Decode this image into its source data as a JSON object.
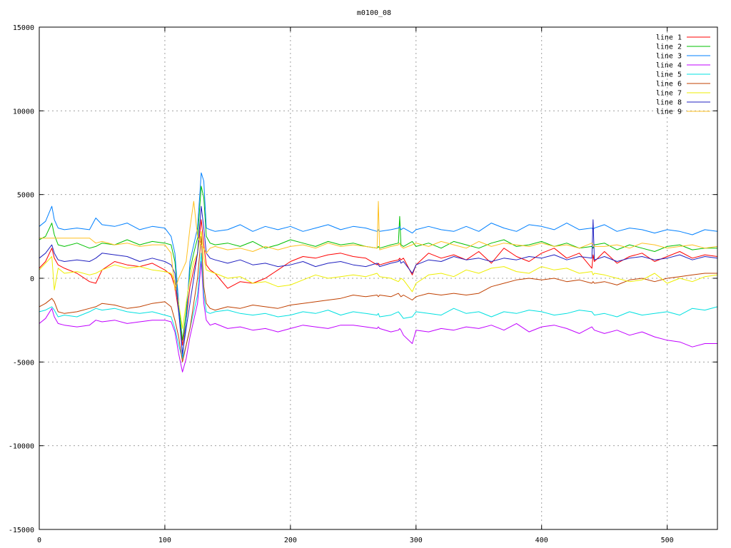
{
  "chart_data": {
    "type": "line",
    "title": "m0100_08",
    "xlabel": "",
    "ylabel": "",
    "xlim": [
      0,
      540
    ],
    "ylim": [
      -15000,
      15000
    ],
    "xticks": [
      "0",
      "100",
      "200",
      "300",
      "400",
      "500"
    ],
    "yticks": [
      "15000",
      "10000",
      "5000",
      "0",
      "-5000",
      "-10000",
      "-15000"
    ],
    "grid": true,
    "legend_position": "top-right",
    "x": [
      0,
      5,
      10,
      12,
      15,
      20,
      30,
      40,
      45,
      50,
      60,
      70,
      80,
      90,
      100,
      105,
      108,
      111,
      114,
      117,
      120,
      123,
      126,
      129,
      131,
      133,
      136,
      140,
      150,
      160,
      170,
      180,
      190,
      200,
      210,
      220,
      230,
      240,
      250,
      260,
      269,
      270,
      271,
      280,
      286,
      287,
      288,
      290,
      297,
      300,
      310,
      320,
      330,
      340,
      350,
      360,
      370,
      380,
      390,
      400,
      410,
      420,
      430,
      440,
      441,
      442,
      450,
      460,
      470,
      480,
      490,
      500,
      510,
      520,
      530,
      540
    ],
    "series": [
      {
        "name": "line 1",
        "color": "#ff0000",
        "values": [
          600,
          1000,
          1800,
          1200,
          800,
          600,
          300,
          -200,
          -300,
          500,
          1000,
          800,
          700,
          900,
          500,
          200,
          -500,
          -2000,
          -4000,
          -2500,
          -500,
          500,
          1500,
          3500,
          2000,
          800,
          500,
          300,
          -600,
          -200,
          -300,
          0,
          500,
          1000,
          1300,
          1200,
          1400,
          1500,
          1300,
          1200,
          800,
          900,
          800,
          1000,
          1100,
          1200,
          1100,
          1200,
          200,
          800,
          1500,
          1200,
          1400,
          1100,
          1600,
          900,
          1800,
          1300,
          1000,
          1500,
          1800,
          1200,
          1500,
          600,
          1400,
          1000,
          1600,
          900,
          1300,
          1500,
          1000,
          1300,
          1600,
          1200,
          1400,
          1300
        ]
      },
      {
        "name": "line 2",
        "color": "#00c000",
        "values": [
          2300,
          2500,
          3300,
          2600,
          2000,
          1900,
          2100,
          1800,
          1900,
          2100,
          2000,
          2300,
          2000,
          2200,
          2100,
          2000,
          1000,
          -1500,
          -3700,
          -2000,
          500,
          1500,
          2400,
          5500,
          4800,
          2500,
          2100,
          2000,
          2100,
          1900,
          2200,
          1800,
          2000,
          2300,
          2100,
          1900,
          2200,
          2000,
          2100,
          1900,
          1800,
          1900,
          1800,
          2000,
          2100,
          3700,
          2000,
          1900,
          2200,
          1900,
          2100,
          1800,
          2200,
          2000,
          1800,
          2100,
          2300,
          1900,
          2000,
          2200,
          1900,
          2100,
          1800,
          1900,
          1800,
          2000,
          2100,
          1700,
          2000,
          1800,
          1600,
          1900,
          2000,
          1700,
          1800,
          1800
        ]
      },
      {
        "name": "line 3",
        "color": "#0080ff",
        "values": [
          3100,
          3400,
          4300,
          3500,
          3000,
          2900,
          3000,
          2900,
          3600,
          3200,
          3100,
          3300,
          2900,
          3100,
          3000,
          2500,
          1500,
          -1500,
          -4700,
          -2500,
          1000,
          2000,
          3000,
          6300,
          5800,
          3000,
          2900,
          2800,
          2900,
          3200,
          2800,
          3100,
          2900,
          3100,
          2800,
          3000,
          3200,
          2900,
          3100,
          3000,
          2800,
          2900,
          2800,
          2900,
          3000,
          3100,
          2900,
          3000,
          2700,
          2900,
          3100,
          2900,
          2800,
          3100,
          2800,
          3300,
          3000,
          2800,
          3200,
          3100,
          2900,
          3300,
          2900,
          3000,
          2900,
          3000,
          3200,
          2800,
          3000,
          2900,
          2700,
          2900,
          2800,
          2600,
          2900,
          2800
        ]
      },
      {
        "name": "line 4",
        "color": "#c000ff",
        "values": [
          -2700,
          -2400,
          -1800,
          -2300,
          -2700,
          -2800,
          -2900,
          -2800,
          -2500,
          -2600,
          -2500,
          -2700,
          -2600,
          -2500,
          -2500,
          -2600,
          -3200,
          -4500,
          -5600,
          -4800,
          -3500,
          -2500,
          -1500,
          1000,
          -1500,
          -2500,
          -2800,
          -2700,
          -3000,
          -2900,
          -3100,
          -3000,
          -3200,
          -3000,
          -2800,
          -2900,
          -3000,
          -2800,
          -2800,
          -2900,
          -3000,
          -2900,
          -3000,
          -3200,
          -3100,
          -3000,
          -3100,
          -3400,
          -3900,
          -3100,
          -3200,
          -3000,
          -3100,
          -2900,
          -3000,
          -2800,
          -3100,
          -2700,
          -3200,
          -2900,
          -2800,
          -3000,
          -3300,
          -2900,
          -3000,
          -3100,
          -3300,
          -3100,
          -3400,
          -3200,
          -3500,
          -3700,
          -3800,
          -4100,
          -3900,
          -3900
        ]
      },
      {
        "name": "line 5",
        "color": "#00e0e0",
        "values": [
          -2000,
          -1900,
          -1700,
          -1900,
          -2300,
          -2200,
          -2300,
          -2000,
          -1800,
          -1900,
          -1800,
          -2000,
          -2100,
          -2000,
          -2200,
          -2300,
          -3000,
          -4000,
          -4800,
          -4000,
          -3000,
          -2000,
          -1000,
          1500,
          -1000,
          -2000,
          -2100,
          -2000,
          -1900,
          -2100,
          -2200,
          -2100,
          -2300,
          -2200,
          -2000,
          -2100,
          -1900,
          -2200,
          -2000,
          -2100,
          -2200,
          -2100,
          -2300,
          -2200,
          -2000,
          -2100,
          -2200,
          -2400,
          -2300,
          -2000,
          -2100,
          -2200,
          -1800,
          -2100,
          -2000,
          -2300,
          -2000,
          -2100,
          -1900,
          -2000,
          -2200,
          -2100,
          -1900,
          -2000,
          -2100,
          -2200,
          -2100,
          -2300,
          -2000,
          -2200,
          -2100,
          -2000,
          -2200,
          -1800,
          -1900,
          -1700
        ]
      },
      {
        "name": "line 6",
        "color": "#c04000",
        "values": [
          -1700,
          -1500,
          -1200,
          -1400,
          -2000,
          -2100,
          -2000,
          -1800,
          -1700,
          -1500,
          -1600,
          -1800,
          -1700,
          -1500,
          -1400,
          -1700,
          -2500,
          -3500,
          -5000,
          -4000,
          -3000,
          -1500,
          0,
          2500,
          -500,
          -1500,
          -1800,
          -1900,
          -1700,
          -1800,
          -1600,
          -1700,
          -1800,
          -1600,
          -1500,
          -1400,
          -1300,
          -1200,
          -1000,
          -1100,
          -1000,
          -1100,
          -1000,
          -1100,
          -900,
          -1000,
          -1100,
          -1000,
          -1300,
          -1100,
          -900,
          -1000,
          -900,
          -1000,
          -900,
          -500,
          -300,
          -100,
          0,
          -100,
          0,
          -200,
          -100,
          -300,
          -200,
          -300,
          -200,
          -400,
          -100,
          0,
          -200,
          0,
          100,
          200,
          300,
          300
        ]
      },
      {
        "name": "line 7",
        "color": "#eeee00",
        "values": [
          500,
          900,
          1300,
          -700,
          600,
          300,
          400,
          200,
          300,
          500,
          800,
          600,
          700,
          500,
          400,
          300,
          -200,
          -1500,
          -3000,
          -1500,
          0,
          1000,
          1500,
          2800,
          1200,
          500,
          400,
          300,
          0,
          100,
          -300,
          -200,
          -500,
          -400,
          -100,
          200,
          0,
          100,
          200,
          100,
          300,
          200,
          100,
          0,
          -200,
          -100,
          0,
          -100,
          -800,
          -300,
          200,
          300,
          100,
          500,
          300,
          600,
          700,
          400,
          300,
          700,
          500,
          600,
          300,
          400,
          200,
          300,
          200,
          0,
          -200,
          -100,
          300,
          -300,
          0,
          -200,
          100,
          200
        ]
      },
      {
        "name": "line 8",
        "color": "#2020c0",
        "values": [
          1200,
          1500,
          2000,
          1500,
          1100,
          1000,
          1100,
          1000,
          1200,
          1500,
          1400,
          1300,
          1000,
          1200,
          1000,
          800,
          300,
          -2000,
          -4500,
          -3000,
          -1500,
          0,
          1500,
          4300,
          3000,
          1500,
          1200,
          1100,
          900,
          1100,
          800,
          900,
          700,
          800,
          1000,
          700,
          900,
          1000,
          800,
          700,
          900,
          800,
          700,
          900,
          1000,
          1100,
          900,
          1000,
          300,
          800,
          1100,
          1000,
          1300,
          1100,
          1200,
          1000,
          1200,
          1100,
          1300,
          1200,
          1400,
          1100,
          1300,
          1200,
          3500,
          1100,
          1300,
          1000,
          1200,
          1300,
          1100,
          1200,
          1400,
          1100,
          1300,
          1200
        ]
      },
      {
        "name": "line 9",
        "color": "#ffc020",
        "values": [
          2400,
          2400,
          2400,
          2400,
          2400,
          2400,
          2400,
          2400,
          2100,
          2200,
          2000,
          2100,
          1900,
          2000,
          2000,
          1500,
          -700,
          0,
          500,
          1000,
          3000,
          4600,
          2500,
          2000,
          1800,
          1500,
          1800,
          1900,
          1700,
          1800,
          1600,
          1900,
          1700,
          1900,
          2000,
          1800,
          2100,
          1900,
          2000,
          1900,
          1800,
          4600,
          1700,
          1900,
          2000,
          2100,
          1900,
          1800,
          2000,
          2100,
          1900,
          2200,
          2000,
          1800,
          2200,
          1900,
          2100,
          2000,
          1900,
          2100,
          1900,
          2000,
          1800,
          2100,
          2000,
          1900,
          1900,
          2000,
          1800,
          2100,
          2000,
          1800,
          1900,
          2000,
          1800,
          1900
        ]
      }
    ]
  }
}
